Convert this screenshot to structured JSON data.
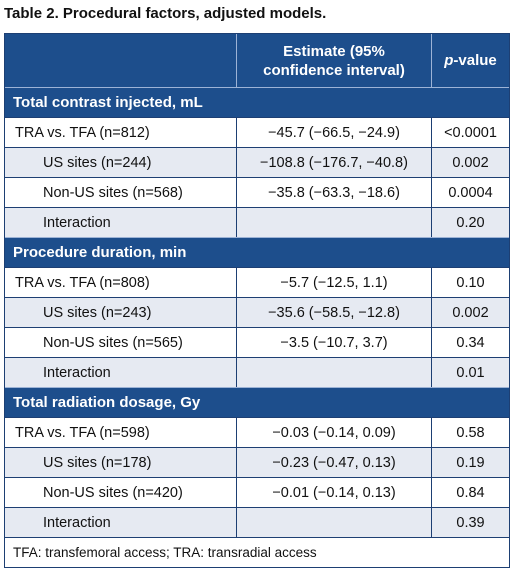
{
  "title": "Table 2. Procedural factors, adjusted models.",
  "header": {
    "estimate_line1": "Estimate (95%",
    "estimate_line2": "confidence interval)",
    "pvalue_italic": "p",
    "pvalue_rest": "-value"
  },
  "sections": [
    {
      "label": "Total contrast injected, mL",
      "rows": [
        {
          "label": "TRA vs. TFA (n=812)",
          "estimate": "−45.7 (−66.5, −24.9)",
          "p": "<0.0001"
        },
        {
          "label": "US sites (n=244)",
          "estimate": "−108.8 (−176.7, −40.8)",
          "p": "0.002"
        },
        {
          "label": "Non-US sites (n=568)",
          "estimate": "−35.8 (−63.3, −18.6)",
          "p": "0.0004"
        },
        {
          "label": "Interaction",
          "estimate": "",
          "p": "0.20"
        }
      ]
    },
    {
      "label": "Procedure duration, min",
      "rows": [
        {
          "label": "TRA vs. TFA (n=808)",
          "estimate": "−5.7 (−12.5, 1.1)",
          "p": "0.10"
        },
        {
          "label": "US sites (n=243)",
          "estimate": "−35.6 (−58.5, −12.8)",
          "p": "0.002"
        },
        {
          "label": "Non-US sites (n=565)",
          "estimate": "−3.5 (−10.7, 3.7)",
          "p": "0.34"
        },
        {
          "label": "Interaction",
          "estimate": "",
          "p": "0.01"
        }
      ]
    },
    {
      "label": "Total radiation dosage, Gy",
      "rows": [
        {
          "label": "TRA vs. TFA (n=598)",
          "estimate": "−0.03 (−0.14, 0.09)",
          "p": "0.58"
        },
        {
          "label": "US sites (n=178)",
          "estimate": "−0.23 (−0.47, 0.13)",
          "p": "0.19"
        },
        {
          "label": "Non-US sites (n=420)",
          "estimate": "−0.01 (−0.14, 0.13)",
          "p": "0.84"
        },
        {
          "label": "Interaction",
          "estimate": "",
          "p": "0.39"
        }
      ]
    }
  ],
  "footnote": "TFA: transfemoral access; TRA: transradial access",
  "colors": {
    "header_bg": "#1d4e8c",
    "shade": "#e6eaf2"
  }
}
